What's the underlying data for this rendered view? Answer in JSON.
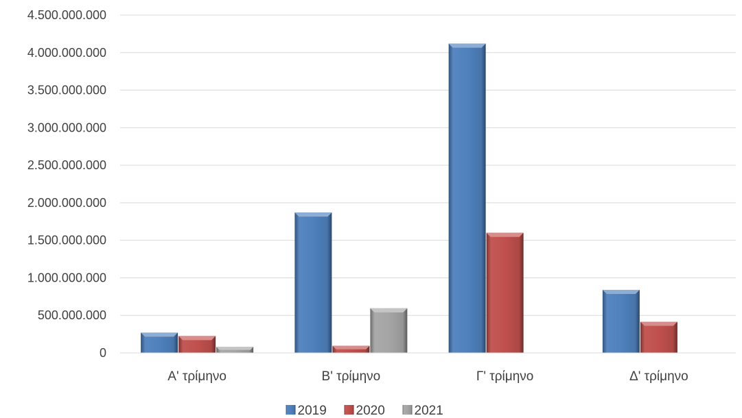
{
  "chart_data": {
    "type": "bar",
    "categories": [
      "A' τρίμηνο",
      "B' τρίμηνο",
      "Γ' τρίμηνο",
      "Δ' τρίμηνο"
    ],
    "series": [
      {
        "name": "2019",
        "color": "#4f81bd",
        "values": [
          270000000,
          1870000000,
          4120000000,
          840000000
        ]
      },
      {
        "name": "2020",
        "color": "#c0504d",
        "values": [
          225000000,
          95000000,
          1600000000,
          415000000
        ]
      },
      {
        "name": "2021",
        "color": "#a5a5a5",
        "values": [
          80000000,
          595000000,
          0,
          0
        ]
      }
    ],
    "yticks": [
      "0",
      "500.000.000",
      "1.000.000.000",
      "1.500.000.000",
      "2.000.000.000",
      "2.500.000.000",
      "3.000.000.000",
      "3.500.000.000",
      "4.000.000.000",
      "4.500.000.000"
    ],
    "ylim": [
      0,
      4500000000
    ],
    "grid": true,
    "legend_position": "bottom"
  }
}
